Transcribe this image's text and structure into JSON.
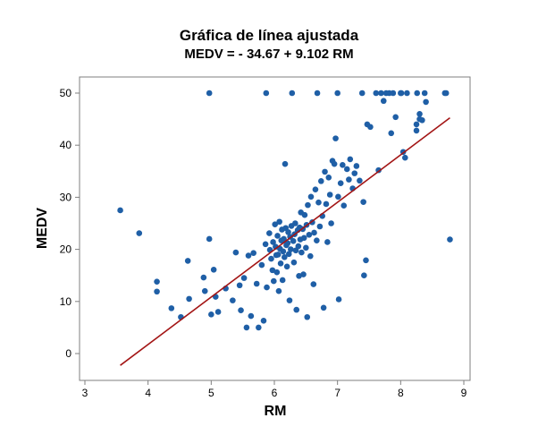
{
  "chart_data": {
    "type": "scatter",
    "title": "Gráfica de línea ajustada",
    "subtitle": "MEDV = - 34.67 + 9.102 RM",
    "xlabel": "RM",
    "ylabel": "MEDV",
    "xlim": [
      3,
      9
    ],
    "ylim": [
      -4,
      53
    ],
    "xticks": [
      3,
      4,
      5,
      6,
      7,
      8,
      9
    ],
    "yticks": [
      0,
      10,
      20,
      30,
      40,
      50
    ],
    "grid": false,
    "fit_line": {
      "intercept": -34.67,
      "slope": 9.102,
      "x_range": [
        3.56,
        8.78
      ],
      "color": "#a31515"
    },
    "point_color": "#1f5fa6",
    "points": [
      [
        3.56,
        27.5
      ],
      [
        3.86,
        23.1
      ],
      [
        4.14,
        13.8
      ],
      [
        4.14,
        11.9
      ],
      [
        4.37,
        8.7
      ],
      [
        4.52,
        7.0
      ],
      [
        4.63,
        17.8
      ],
      [
        4.65,
        10.5
      ],
      [
        4.88,
        14.6
      ],
      [
        4.9,
        12.0
      ],
      [
        4.97,
        22.0
      ],
      [
        4.97,
        50.0
      ],
      [
        5.0,
        7.5
      ],
      [
        5.04,
        16.1
      ],
      [
        5.07,
        10.9
      ],
      [
        5.11,
        8.0
      ],
      [
        5.23,
        12.5
      ],
      [
        5.34,
        10.2
      ],
      [
        5.39,
        19.4
      ],
      [
        5.45,
        13.1
      ],
      [
        5.47,
        8.3
      ],
      [
        5.52,
        14.5
      ],
      [
        5.56,
        5.0
      ],
      [
        5.59,
        18.8
      ],
      [
        5.63,
        7.2
      ],
      [
        5.67,
        19.3
      ],
      [
        5.72,
        13.4
      ],
      [
        5.75,
        5.0
      ],
      [
        5.8,
        17.0
      ],
      [
        5.83,
        6.3
      ],
      [
        5.87,
        50.0
      ],
      [
        5.86,
        21.0
      ],
      [
        5.88,
        12.7
      ],
      [
        5.92,
        23.1
      ],
      [
        5.93,
        19.9
      ],
      [
        5.95,
        18.2
      ],
      [
        5.97,
        16.0
      ],
      [
        5.98,
        21.4
      ],
      [
        5.99,
        13.9
      ],
      [
        6.01,
        24.8
      ],
      [
        6.02,
        20.5
      ],
      [
        6.03,
        18.9
      ],
      [
        6.04,
        15.6
      ],
      [
        6.05,
        22.6
      ],
      [
        6.06,
        19.0
      ],
      [
        6.07,
        12.0
      ],
      [
        6.08,
        25.3
      ],
      [
        6.09,
        20.1
      ],
      [
        6.1,
        17.3
      ],
      [
        6.11,
        21.7
      ],
      [
        6.12,
        23.8
      ],
      [
        6.13,
        14.1
      ],
      [
        6.14,
        19.6
      ],
      [
        6.15,
        22.0
      ],
      [
        6.16,
        18.5
      ],
      [
        6.17,
        36.4
      ],
      [
        6.18,
        24.1
      ],
      [
        6.19,
        20.8
      ],
      [
        6.2,
        16.7
      ],
      [
        6.21,
        21.2
      ],
      [
        6.22,
        23.3
      ],
      [
        6.23,
        19.1
      ],
      [
        6.24,
        10.2
      ],
      [
        6.25,
        22.4
      ],
      [
        6.26,
        20.0
      ],
      [
        6.27,
        24.5
      ],
      [
        6.28,
        50.0
      ],
      [
        6.3,
        21.6
      ],
      [
        6.31,
        17.5
      ],
      [
        6.32,
        22.9
      ],
      [
        6.33,
        25.0
      ],
      [
        6.34,
        19.8
      ],
      [
        6.35,
        8.4
      ],
      [
        6.37,
        23.7
      ],
      [
        6.38,
        20.6
      ],
      [
        6.39,
        14.9
      ],
      [
        6.4,
        24.2
      ],
      [
        6.41,
        21.9
      ],
      [
        6.42,
        27.1
      ],
      [
        6.43,
        19.4
      ],
      [
        6.45,
        23.9
      ],
      [
        6.46,
        15.2
      ],
      [
        6.47,
        22.2
      ],
      [
        6.48,
        26.6
      ],
      [
        6.5,
        20.3
      ],
      [
        6.51,
        24.7
      ],
      [
        6.52,
        7.0
      ],
      [
        6.53,
        28.5
      ],
      [
        6.55,
        22.8
      ],
      [
        6.57,
        18.7
      ],
      [
        6.58,
        30.1
      ],
      [
        6.6,
        25.2
      ],
      [
        6.62,
        13.3
      ],
      [
        6.63,
        23.2
      ],
      [
        6.65,
        31.5
      ],
      [
        6.67,
        21.7
      ],
      [
        6.68,
        50.0
      ],
      [
        6.7,
        29.0
      ],
      [
        6.72,
        24.4
      ],
      [
        6.74,
        33.1
      ],
      [
        6.76,
        26.4
      ],
      [
        6.78,
        8.8
      ],
      [
        6.8,
        34.9
      ],
      [
        6.82,
        28.7
      ],
      [
        6.84,
        21.4
      ],
      [
        6.86,
        33.8
      ],
      [
        6.88,
        30.5
      ],
      [
        6.9,
        25.0
      ],
      [
        6.92,
        37.0
      ],
      [
        6.95,
        36.4
      ],
      [
        6.97,
        41.3
      ],
      [
        7.0,
        50.0
      ],
      [
        7.01,
        30.1
      ],
      [
        7.02,
        10.4
      ],
      [
        7.05,
        32.7
      ],
      [
        7.08,
        36.2
      ],
      [
        7.1,
        28.4
      ],
      [
        7.15,
        35.4
      ],
      [
        7.18,
        33.4
      ],
      [
        7.2,
        37.3
      ],
      [
        7.24,
        31.7
      ],
      [
        7.27,
        34.6
      ],
      [
        7.3,
        36.0
      ],
      [
        7.35,
        33.2
      ],
      [
        7.39,
        50.0
      ],
      [
        7.41,
        29.1
      ],
      [
        7.42,
        15.0
      ],
      [
        7.45,
        17.9
      ],
      [
        7.47,
        44.0
      ],
      [
        7.52,
        43.5
      ],
      [
        7.61,
        50.0
      ],
      [
        7.65,
        35.2
      ],
      [
        7.69,
        50.0
      ],
      [
        7.73,
        48.5
      ],
      [
        7.77,
        50.0
      ],
      [
        7.82,
        50.0
      ],
      [
        7.85,
        42.3
      ],
      [
        7.88,
        50.0
      ],
      [
        7.92,
        45.4
      ],
      [
        8.0,
        50.0
      ],
      [
        8.04,
        38.7
      ],
      [
        8.07,
        37.6
      ],
      [
        8.25,
        42.8
      ],
      [
        8.26,
        50.0
      ],
      [
        8.3,
        46.0
      ],
      [
        8.34,
        44.8
      ],
      [
        8.38,
        50.0
      ],
      [
        8.4,
        48.3
      ],
      [
        8.7,
        50.0
      ],
      [
        8.72,
        50.0
      ],
      [
        8.78,
        21.9
      ],
      [
        8.01,
        50.0
      ],
      [
        8.1,
        50.0
      ],
      [
        8.3,
        45.0
      ],
      [
        8.25,
        44.0
      ]
    ]
  }
}
